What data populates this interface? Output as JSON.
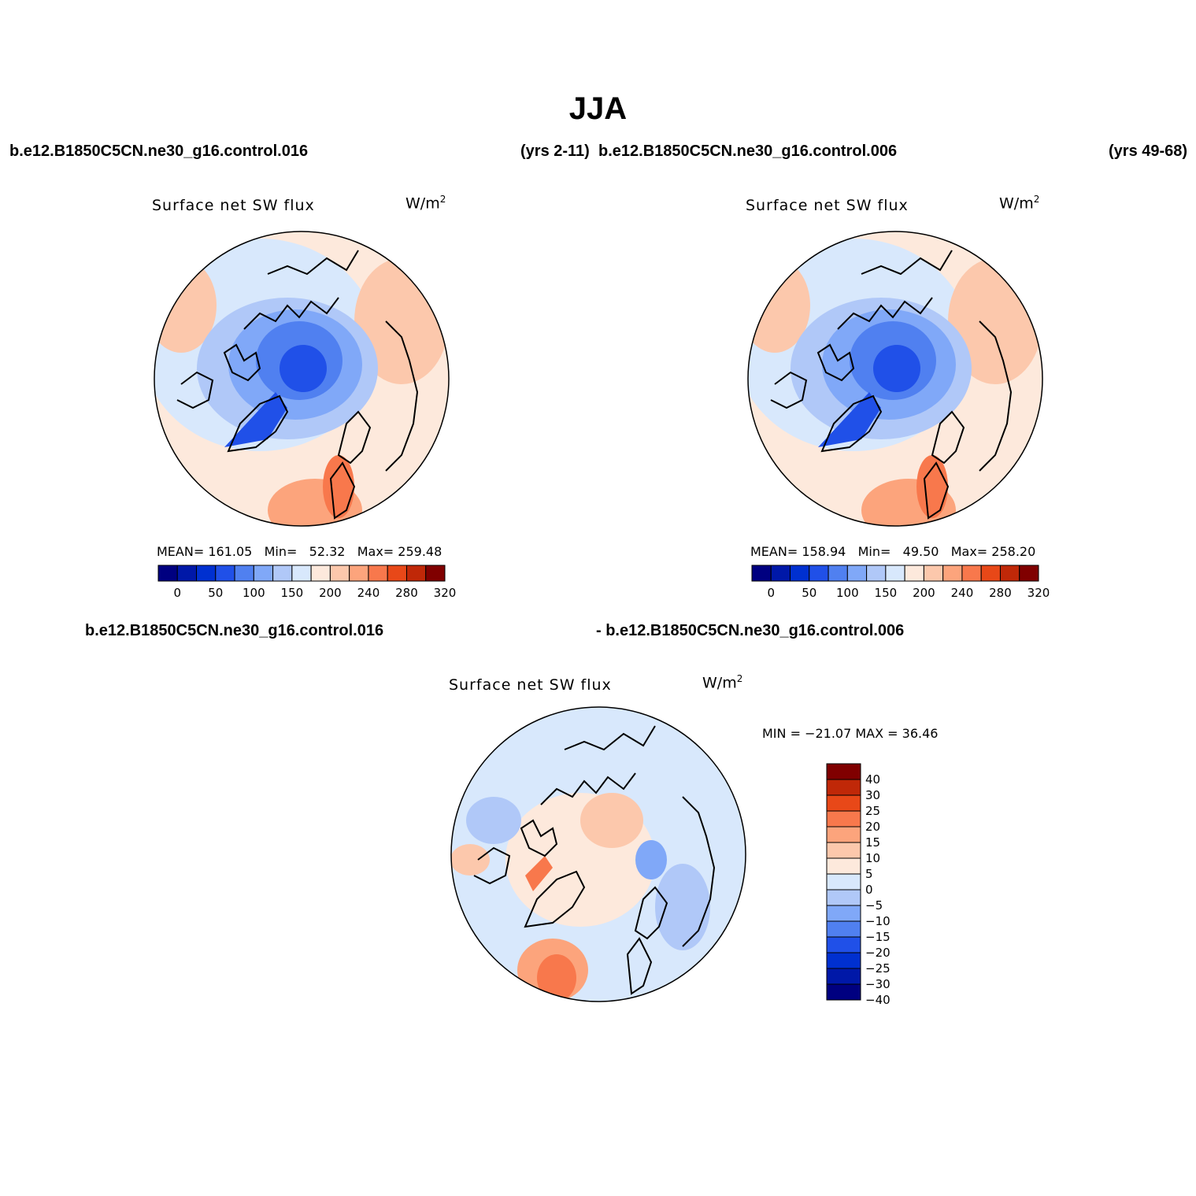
{
  "season": "JJA",
  "header": {
    "left_case": "b.e12.B1850C5CN.ne30_g16.control.016",
    "left_years": "(yrs 2-11)",
    "right_case": "b.e12.B1850C5CN.ne30_g16.control.006",
    "right_years": "(yrs 49-68)"
  },
  "diff_header": {
    "left": "b.e12.B1850C5CN.ne30_g16.control.016",
    "right": "- b.e12.B1850C5CN.ne30_g16.control.006"
  },
  "panels": [
    {
      "title": "Surface net SW flux",
      "units": "W/m",
      "units_sup": "2",
      "stats": {
        "mean_label": "MEAN=",
        "mean": "161.05",
        "min_label": "Min=",
        "min": "52.32",
        "max_label": "Max=",
        "max": "259.48"
      }
    },
    {
      "title": "Surface net SW flux",
      "units": "W/m",
      "units_sup": "2",
      "stats": {
        "mean_label": "MEAN=",
        "mean": "158.94",
        "min_label": "Min=",
        "min": "49.50",
        "max_label": "Max=",
        "max": "258.20"
      }
    }
  ],
  "diff_panel": {
    "title": "Surface net SW flux",
    "units": "W/m",
    "units_sup": "2",
    "minmax": "MIN = −21.07 MAX =  36.46"
  },
  "colors": {
    "field": [
      "#000080",
      "#0018a8",
      "#0030d0",
      "#2050e8",
      "#5080f0",
      "#80a8f8",
      "#b0c8f8",
      "#d8e8fc",
      "#fde9dc",
      "#fcc8ac",
      "#fca47c",
      "#f8784c",
      "#e84818",
      "#c02808",
      "#800000"
    ],
    "diff": [
      "#000080",
      "#0018a8",
      "#0030d0",
      "#2050e8",
      "#5080f0",
      "#80a8f8",
      "#b0c8f8",
      "#d8e8fc",
      "#fde9dc",
      "#fcc8ac",
      "#fca47c",
      "#f8784c",
      "#e84818",
      "#c02808",
      "#800000"
    ]
  },
  "chart_data": [
    {
      "type": "heatmap",
      "projection": "north-polar-stereographic",
      "title": "Surface net SW flux",
      "units": "W/m2",
      "case": "b.e12.B1850C5CN.ne30_g16.control.016",
      "years": "yrs 2-11",
      "mean": 161.05,
      "min": 52.32,
      "max": 259.48,
      "colorbar_ticks": [
        "0",
        "50",
        "100",
        "150",
        "200",
        "240",
        "280",
        "320"
      ]
    },
    {
      "type": "heatmap",
      "projection": "north-polar-stereographic",
      "title": "Surface net SW flux",
      "units": "W/m2",
      "case": "b.e12.B1850C5CN.ne30_g16.control.006",
      "years": "yrs 49-68",
      "mean": 158.94,
      "min": 49.5,
      "max": 258.2,
      "colorbar_ticks": [
        "0",
        "50",
        "100",
        "150",
        "200",
        "240",
        "280",
        "320"
      ]
    },
    {
      "type": "heatmap",
      "projection": "north-polar-stereographic",
      "title": "Surface net SW flux",
      "units": "W/m2",
      "description": "difference control.016 - control.006",
      "min": -21.07,
      "max": 36.46,
      "colorbar_ticks": [
        "40",
        "30",
        "25",
        "20",
        "15",
        "10",
        "5",
        "0",
        "−5",
        "−10",
        "−15",
        "−20",
        "−25",
        "−30",
        "−40"
      ]
    }
  ]
}
